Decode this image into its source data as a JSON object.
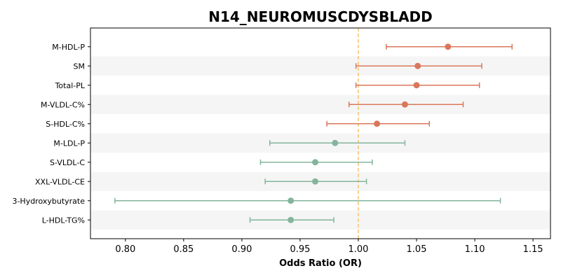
{
  "chart_data": {
    "type": "forest",
    "title": "N14_NEUROMUSCDYSBLADD",
    "xlabel": "Odds Ratio (OR)",
    "xlim": [
      0.77,
      1.165
    ],
    "xticks": [
      "0.80",
      "0.85",
      "0.90",
      "0.95",
      "1.00",
      "1.05",
      "1.10",
      "1.15"
    ],
    "reference_line": 1.0,
    "colors": {
      "positive": "#d9775b",
      "negative": "#84b59c",
      "reference": "#f5c26b",
      "band": "#f5f5f5"
    },
    "rows": [
      {
        "label": "M-HDL-P",
        "or": 1.077,
        "lo": 1.024,
        "hi": 1.132
      },
      {
        "label": "SM",
        "or": 1.051,
        "lo": 0.998,
        "hi": 1.106
      },
      {
        "label": "Total-PL",
        "or": 1.05,
        "lo": 0.998,
        "hi": 1.104
      },
      {
        "label": "M-VLDL-C%",
        "or": 1.04,
        "lo": 0.992,
        "hi": 1.09
      },
      {
        "label": "S-HDL-C%",
        "or": 1.016,
        "lo": 0.973,
        "hi": 1.061
      },
      {
        "label": "M-LDL-P",
        "or": 0.98,
        "lo": 0.924,
        "hi": 1.04
      },
      {
        "label": "S-VLDL-C",
        "or": 0.963,
        "lo": 0.916,
        "hi": 1.012
      },
      {
        "label": "XXL-VLDL-CE",
        "or": 0.963,
        "lo": 0.92,
        "hi": 1.007
      },
      {
        "label": "3-Hydroxybutyrate",
        "or": 0.942,
        "lo": 0.791,
        "hi": 1.122
      },
      {
        "label": "L-HDL-TG%",
        "or": 0.942,
        "lo": 0.907,
        "hi": 0.979
      }
    ]
  }
}
